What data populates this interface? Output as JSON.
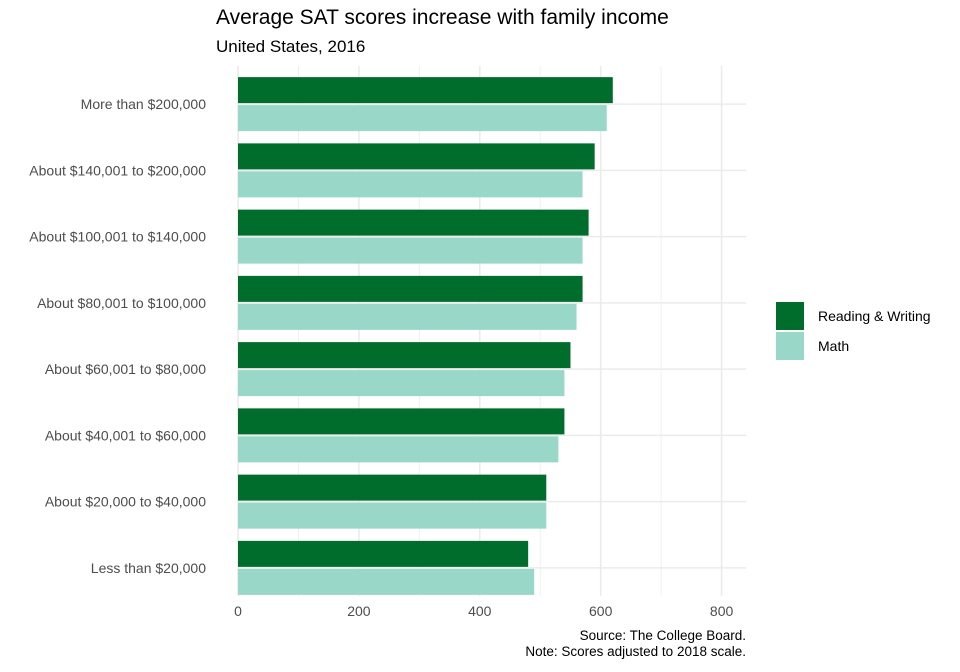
{
  "chart_data": {
    "type": "bar",
    "orientation": "horizontal",
    "title": "Average SAT scores increase with family income",
    "subtitle": "United States, 2016",
    "categories": [
      "More than $200,000",
      "About $140,001 to $200,000",
      "About $100,001 to $140,000",
      "About $80,001 to $100,000",
      "About $60,001 to $80,000",
      "About $40,001 to $60,000",
      "About $20,000 to $40,000",
      "Less than $20,000"
    ],
    "series": [
      {
        "name": "Reading & Writing",
        "color": "#006d2c",
        "values": [
          620,
          590,
          580,
          570,
          550,
          540,
          510,
          480
        ]
      },
      {
        "name": "Math",
        "color": "#99d8c9",
        "values": [
          610,
          570,
          570,
          560,
          540,
          530,
          510,
          490
        ]
      }
    ],
    "xlim": [
      0,
      840
    ],
    "xticks": [
      "0",
      "200",
      "400",
      "600",
      "800"
    ],
    "xtick_values": [
      0,
      200,
      400,
      600,
      800
    ],
    "xlabel": "",
    "ylabel": "",
    "grid": true,
    "legend": "right",
    "caption": [
      "Source: The College Board.",
      "Note: Scores adjusted to 2018 scale."
    ]
  }
}
